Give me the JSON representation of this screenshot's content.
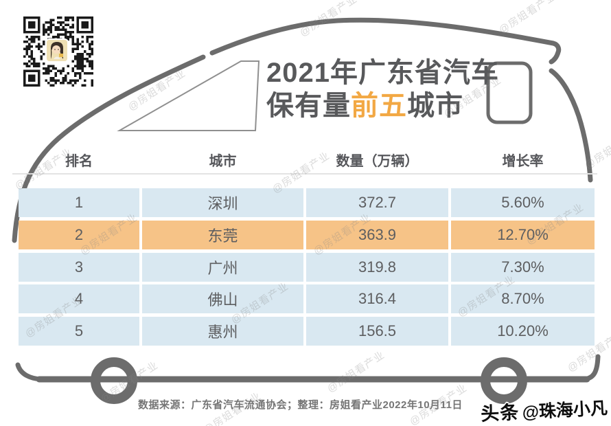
{
  "title": {
    "line1": "2021年广东省汽车",
    "line2_prefix": "保有量",
    "line2_highlight": "前五",
    "line2_suffix": "城市"
  },
  "table": {
    "headers": [
      "排名",
      "城市",
      "数量（万辆）",
      "增长率"
    ],
    "rows": [
      {
        "rank": "1",
        "city": "深圳",
        "qty": "372.7",
        "growth": "5.60%"
      },
      {
        "rank": "2",
        "city": "东莞",
        "qty": "363.9",
        "growth": "12.70%"
      },
      {
        "rank": "3",
        "city": "广州",
        "qty": "319.8",
        "growth": "7.30%"
      },
      {
        "rank": "4",
        "city": "佛山",
        "qty": "316.4",
        "growth": "8.70%"
      },
      {
        "rank": "5",
        "city": "惠州",
        "qty": "156.5",
        "growth": "10.20%"
      }
    ]
  },
  "chart_data": {
    "type": "table",
    "title": "2021年广东省汽车保有量前五城市",
    "columns": [
      "排名",
      "城市",
      "数量（万辆）",
      "增长率"
    ],
    "categories": [
      "深圳",
      "东莞",
      "广州",
      "佛山",
      "惠州"
    ],
    "series": [
      {
        "name": "数量（万辆）",
        "values": [
          372.7,
          363.9,
          319.8,
          316.4,
          156.5
        ]
      },
      {
        "name": "增长率",
        "values": [
          "5.60%",
          "12.70%",
          "7.30%",
          "8.70%",
          "10.20%"
        ]
      }
    ],
    "highlighted_row": "东莞"
  },
  "footer": {
    "source": "数据来源：广东省汽车流通协会；整理：房姐看产业2022年10月11日"
  },
  "byline": {
    "platform": "头条",
    "handle": "@珠海小凡"
  },
  "watermark_text": "@房姐看产业",
  "icons": {
    "qr": "qr-code",
    "avatar": "girl-avatar",
    "illustration": "car-outline"
  },
  "colors": {
    "accent_orange": "#F2A844",
    "row_highlight_orange": "#F6C387",
    "row_blue": "#D9E8F1",
    "car_gray": "#6C6C6C",
    "title_gray": "#58595B",
    "cell_text": "#5D5E60"
  }
}
